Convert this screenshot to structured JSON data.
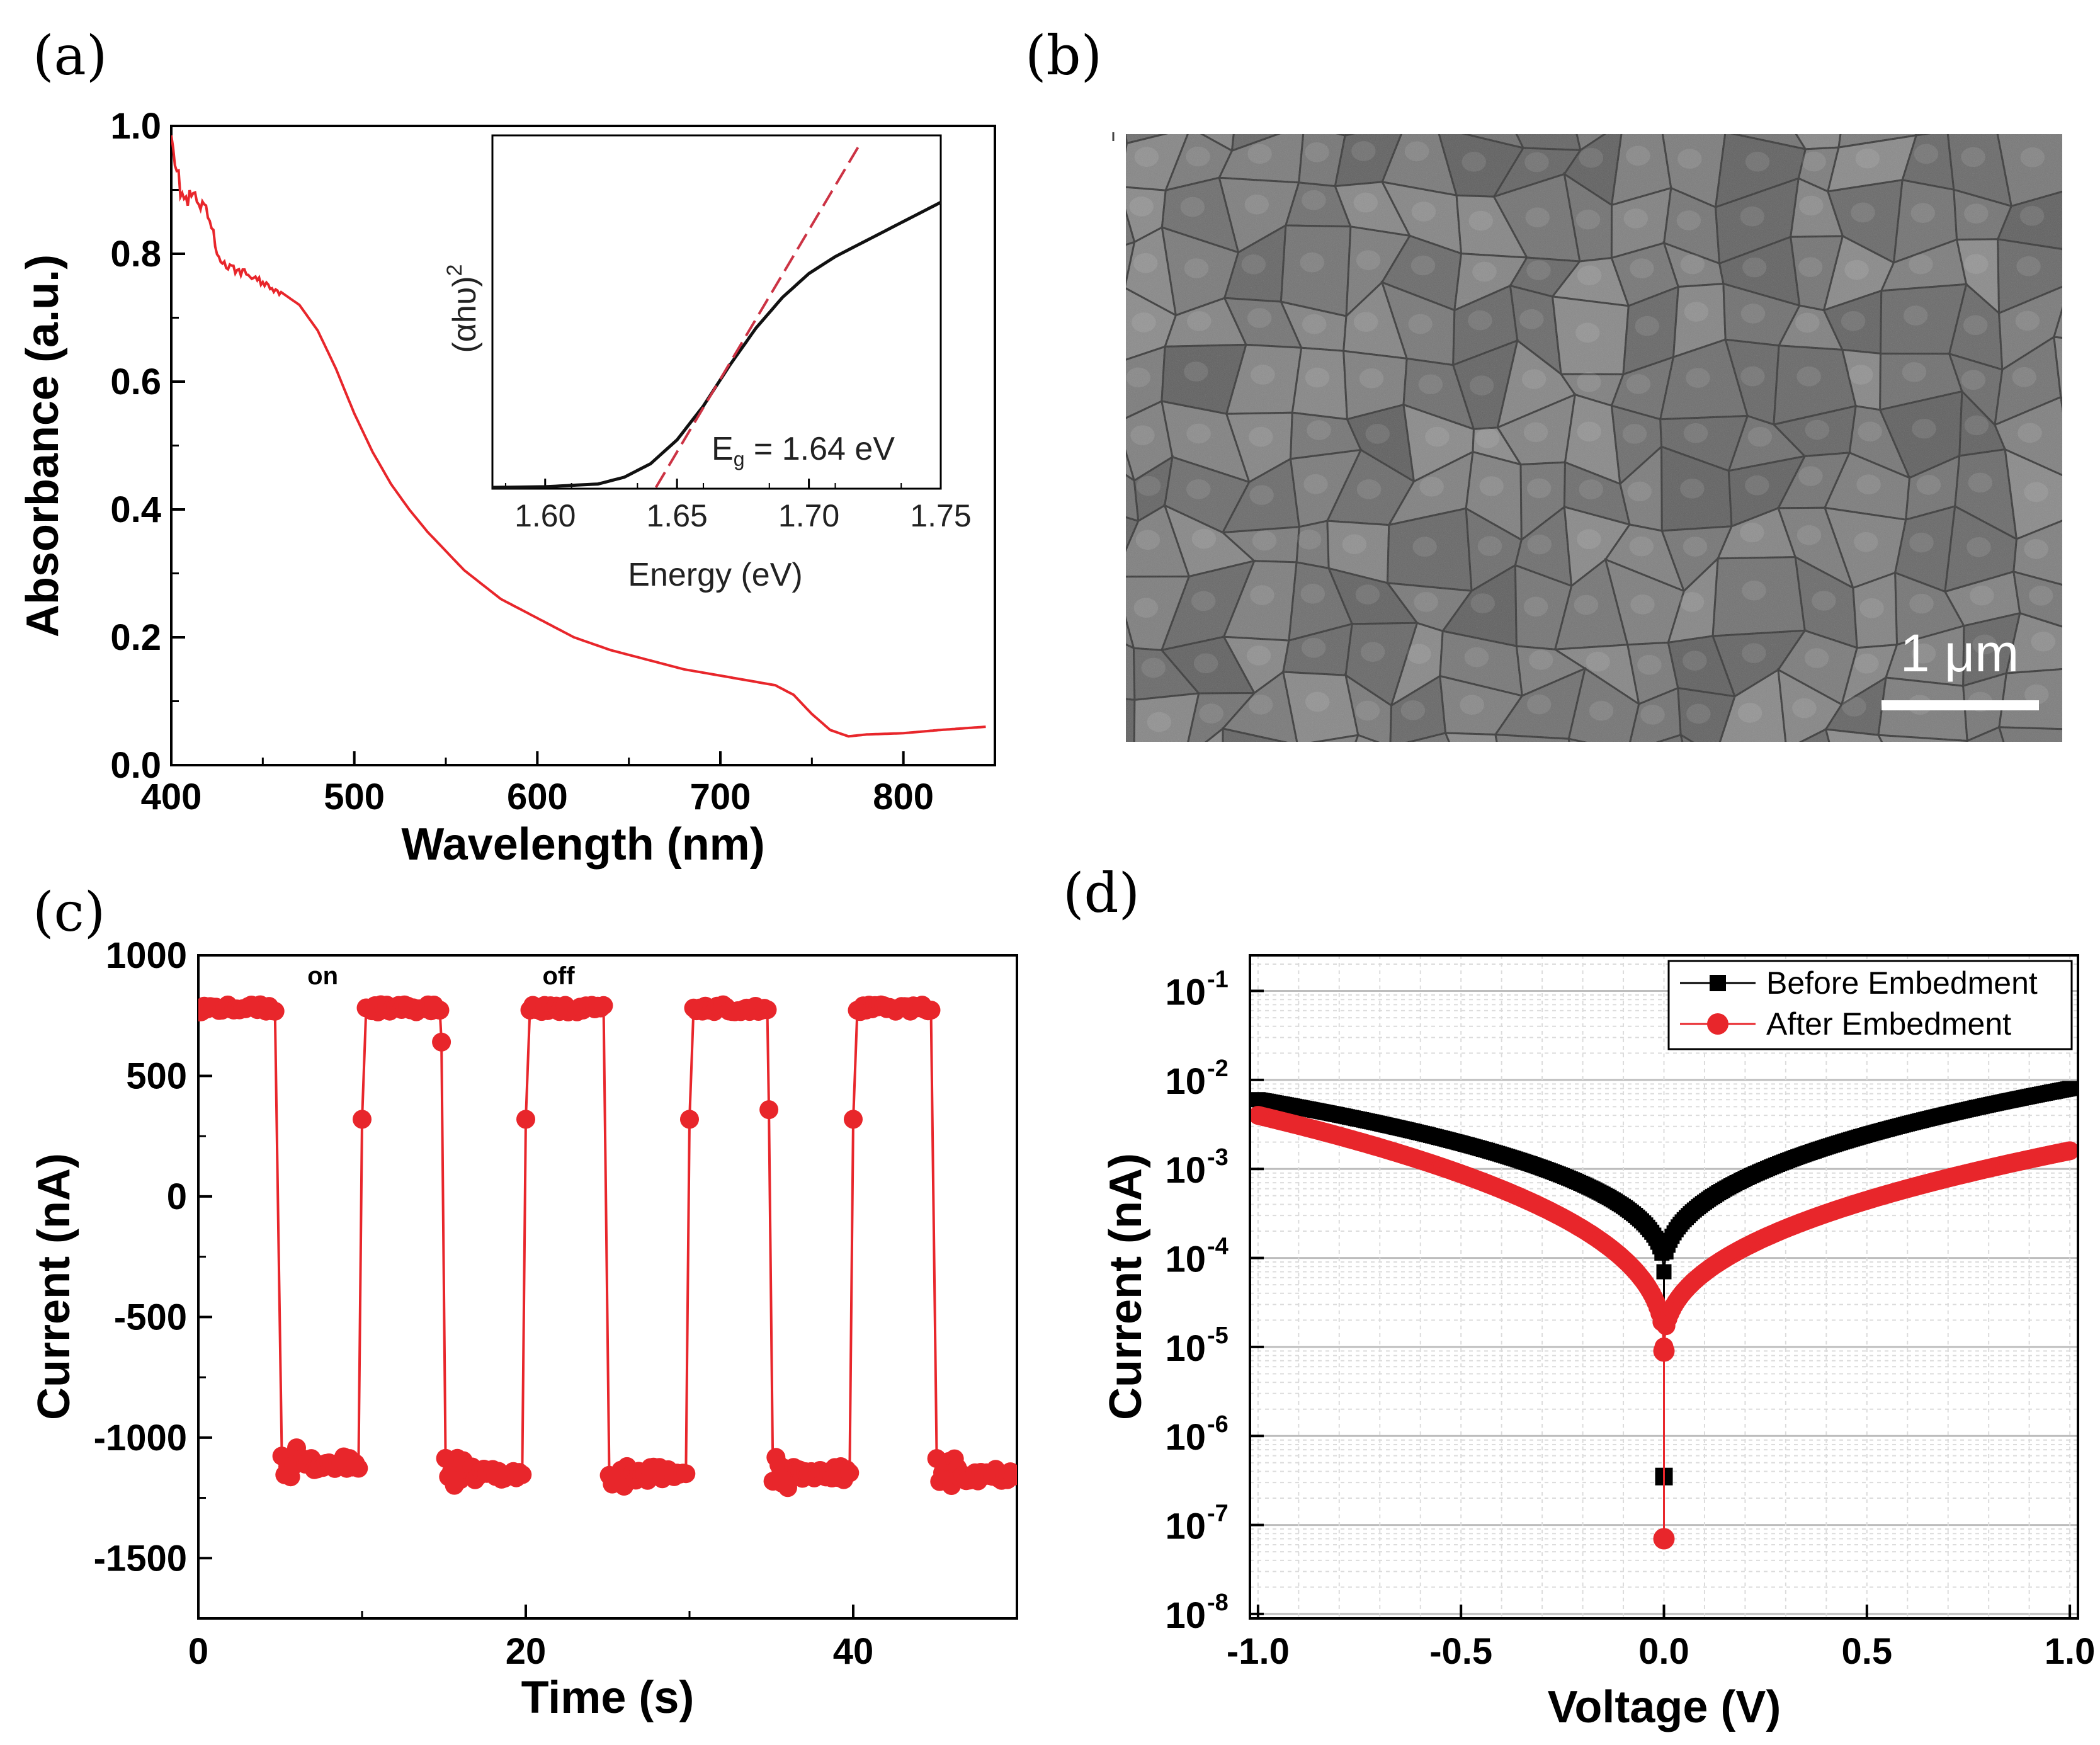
{
  "panels": {
    "a": "(a)",
    "b": "(b)",
    "c": "(c)",
    "d": "(d)"
  },
  "colors": {
    "red": "#e8262b",
    "black": "#000000",
    "inset_curve": "#111111",
    "inset_fit": "#cc3344"
  },
  "chart_data": [
    {
      "id": "a",
      "type": "line",
      "xlabel": "Wavelength (nm)",
      "ylabel": "Absorbance (a.u.)",
      "xlim": [
        400,
        850
      ],
      "ylim": [
        0.0,
        1.0
      ],
      "xticks": [
        400,
        500,
        600,
        700,
        800
      ],
      "xtick_labels": [
        "400",
        "500",
        "600",
        "700",
        "800"
      ],
      "yticks": [
        0.0,
        0.2,
        0.4,
        0.6,
        0.8,
        1.0
      ],
      "ytick_labels": [
        "0.0",
        "0.2",
        "0.4",
        "0.6",
        "0.8",
        "1.0"
      ],
      "series": [
        {
          "name": "Absorbance",
          "color": "#e8262b",
          "x": [
            400,
            402,
            405,
            408,
            412,
            416,
            420,
            425,
            430,
            440,
            450,
            460,
            470,
            480,
            490,
            500,
            510,
            520,
            530,
            540,
            550,
            560,
            580,
            600,
            620,
            640,
            660,
            680,
            700,
            720,
            730,
            740,
            750,
            760,
            770,
            780,
            800,
            820,
            845
          ],
          "y": [
            1.0,
            0.95,
            0.9,
            0.88,
            0.89,
            0.87,
            0.86,
            0.8,
            0.78,
            0.77,
            0.755,
            0.74,
            0.72,
            0.68,
            0.62,
            0.55,
            0.49,
            0.44,
            0.4,
            0.365,
            0.335,
            0.305,
            0.26,
            0.23,
            0.2,
            0.18,
            0.165,
            0.15,
            0.14,
            0.13,
            0.125,
            0.11,
            0.08,
            0.055,
            0.045,
            0.048,
            0.05,
            0.055,
            0.06
          ]
        }
      ],
      "inset": {
        "xlabel": "Energy (eV)",
        "ylabel_base": "(αhυ)",
        "ylabel_sup": "2",
        "xlim": [
          1.58,
          1.75
        ],
        "xticks": [
          1.6,
          1.65,
          1.7,
          1.75
        ],
        "xtick_labels": [
          "1.60",
          "1.65",
          "1.70",
          "1.75"
        ],
        "annotation_base": "E",
        "annotation_sub": "g",
        "annotation_rest": " = 1.64 eV",
        "series": [
          {
            "name": "(αhυ)^2",
            "color": "#111111",
            "x": [
              1.58,
              1.6,
              1.62,
              1.63,
              1.64,
              1.65,
              1.66,
              1.67,
              1.68,
              1.69,
              1.7,
              1.71,
              1.72,
              1.73,
              1.74,
              1.75
            ],
            "y": [
              0.0,
              0.002,
              0.01,
              0.03,
              0.07,
              0.14,
              0.24,
              0.36,
              0.47,
              0.56,
              0.63,
              0.68,
              0.72,
              0.76,
              0.8,
              0.84
            ]
          },
          {
            "name": "linear fit",
            "color": "#cc3344",
            "dashed": true,
            "x": [
              1.642,
              1.72
            ],
            "y": [
              0.0,
              1.02
            ]
          }
        ]
      }
    },
    {
      "id": "b",
      "type": "image",
      "scale_bar_label": "1 μm"
    },
    {
      "id": "c",
      "type": "scatter",
      "xlabel": "Time (s)",
      "ylabel": "Current (nA)",
      "xlim": [
        0,
        50
      ],
      "ylim": [
        -1750,
        1000
      ],
      "xticks": [
        0,
        20,
        40
      ],
      "xtick_labels": [
        "0",
        "20",
        "40"
      ],
      "yticks": [
        1000,
        500,
        0,
        -500,
        -1000,
        -1500
      ],
      "ytick_labels": [
        "1000",
        "500",
        "0",
        "-500",
        "-1000",
        "-1500"
      ],
      "annotations": [
        {
          "text": "on",
          "x": 7.6,
          "y": 880
        },
        {
          "text": "off",
          "x": 22.0,
          "y": 880
        }
      ],
      "on_level": 780,
      "off_level": -1150,
      "transient": 320,
      "period": 10,
      "on_duration": 5,
      "series": [
        {
          "name": "Photocurrent",
          "color": "#e8262b"
        }
      ]
    },
    {
      "id": "d",
      "type": "scatter",
      "yscale": "log",
      "xlabel": "Voltage (V)",
      "ylabel": "Current (nA)",
      "xlim": [
        -1.02,
        1.02
      ],
      "ylim_exp": [
        -8,
        -1
      ],
      "xticks": [
        -1.0,
        -0.5,
        0.0,
        0.5,
        1.0
      ],
      "xtick_labels": [
        "-1.0",
        "-0.5",
        "0.0",
        "0.5",
        "1.0"
      ],
      "ytick_exps": [
        -1,
        -2,
        -3,
        -4,
        -5,
        -6,
        -7,
        -8
      ],
      "ytick_base": "10",
      "ytick_sups": [
        "-1",
        "-2",
        "-3",
        "-4",
        "-5",
        "-6",
        "-7",
        "-8"
      ],
      "legend_position": "top-right",
      "series": [
        {
          "name": "Before Embedment",
          "color": "#000000",
          "marker": "square",
          "left_end": 0.006,
          "right_end": 0.008,
          "center": 7e-05,
          "outlier": {
            "x": 0.0,
            "y": 3.5e-07
          }
        },
        {
          "name": "After Embedment",
          "color": "#e8262b",
          "marker": "circle",
          "left_end": 0.004,
          "right_end": 0.0016,
          "center": 1e-05,
          "outlier": {
            "x": 0.0,
            "y": 7e-08
          }
        }
      ]
    }
  ]
}
